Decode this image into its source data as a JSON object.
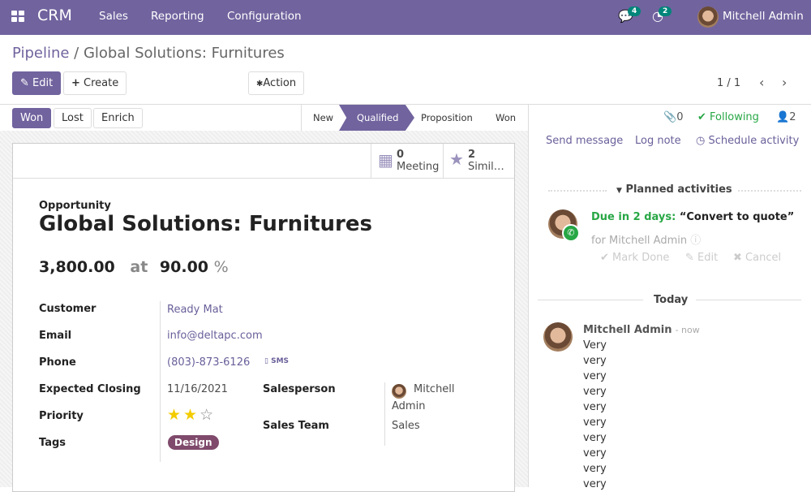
{
  "navbar": {
    "brand": "CRM",
    "menu": [
      "Sales",
      "Reporting",
      "Configuration"
    ],
    "messages_count": "4",
    "activities_count": "2",
    "user": "Mitchell Admin",
    "color": "#71639e"
  },
  "breadcrumb": {
    "parent": "Pipeline",
    "separator": " / ",
    "current": "Global Solutions: Furnitures"
  },
  "toolbar": {
    "edit": "Edit",
    "create": "Create",
    "action": "Action",
    "pager": "1 / 1"
  },
  "statusbar": {
    "buttons": [
      "Won",
      "Lost",
      "Enrich"
    ],
    "stages": [
      "New",
      "Qualified",
      "Proposition",
      "Won"
    ],
    "active_stage": "Qualified"
  },
  "smart_buttons": {
    "meeting_count": "0",
    "meeting_label": "Meeting",
    "similar_count": "2",
    "similar_label": "Simil…"
  },
  "form": {
    "kind": "Opportunity",
    "title": "Global Solutions: Furnitures",
    "revenue": "3,800.00",
    "at": "at",
    "probability": "90.00",
    "percent": "%",
    "fields": {
      "customer_label": "Customer",
      "customer": "Ready Mat",
      "email_label": "Email",
      "email": "info@deltapc.com",
      "phone_label": "Phone",
      "phone": "(803)-873-6126",
      "sms": "SMS",
      "closing_label": "Expected Closing",
      "closing": "11/16/2021",
      "priority_label": "Priority",
      "priority": 2,
      "priority_max": 3,
      "tags_label": "Tags",
      "tag": "Design",
      "salesperson_label": "Salesperson",
      "salesperson_1": "Mitchell",
      "salesperson_2": "Admin",
      "team_label": "Sales Team",
      "team": "Sales"
    }
  },
  "chatter": {
    "attachments": "0",
    "following": "Following",
    "followers": "2",
    "send_message": "Send message",
    "log_note": "Log note",
    "schedule_activity": "Schedule activity",
    "planned_title": "Planned activities",
    "activity": {
      "due": "Due in 2 days:",
      "summary": "“Convert to quote”",
      "for": "for Mitchell Admin",
      "mark_done": "Mark Done",
      "edit": "Edit",
      "cancel": "Cancel"
    },
    "today": "Today",
    "message": {
      "author": "Mitchell Admin",
      "time": "- now",
      "lines": [
        "Very",
        "very",
        "very",
        "very",
        "very",
        "very",
        "very",
        "very",
        "very",
        "very"
      ]
    }
  }
}
